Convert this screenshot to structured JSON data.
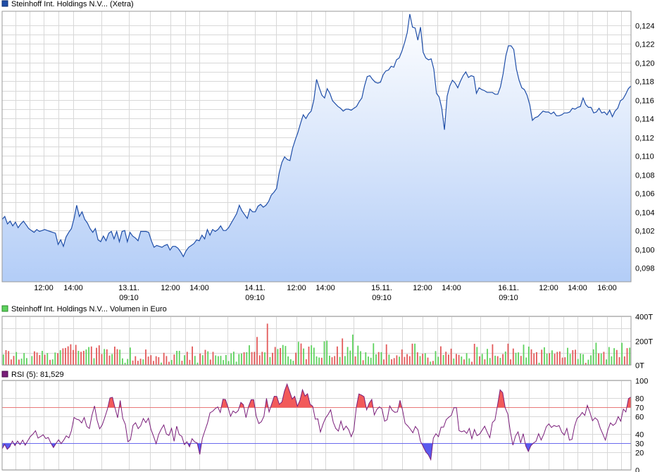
{
  "colors": {
    "price_line": "#1f4ea8",
    "price_fill_top": "#ffffff",
    "price_fill_bottom": "#b3cdf7",
    "vol_up": "#5ed25e",
    "vol_down": "#e35a5a",
    "rsi_line": "#7a1e7a",
    "rsi_overbought": "#f25a5a",
    "rsi_oversold": "#5a5aee",
    "line_70": "#e87878",
    "line_30": "#6a6aee"
  },
  "chart_data": [
    {
      "type": "area",
      "legend": "Steinhoff Int. Holdings N.V... (Xetra)",
      "legend_icon": "blue-square-icon",
      "ylim": [
        0.0965,
        0.1255
      ],
      "y_ticks": [
        "0,124",
        "0,122",
        "0,120",
        "0,118",
        "0,116",
        "0,114",
        "0,112",
        "0,110",
        "0,108",
        "0,106",
        "0,104",
        "0,102",
        "0,100",
        "0,098"
      ],
      "x_ticks": [
        {
          "label": "12:00",
          "sub": ""
        },
        {
          "label": "14:00",
          "sub": ""
        },
        {
          "label": "13.11.",
          "sub": "09:10"
        },
        {
          "label": "12:00",
          "sub": ""
        },
        {
          "label": "14:00",
          "sub": ""
        },
        {
          "label": "14.11.",
          "sub": "09:10"
        },
        {
          "label": "12:00",
          "sub": ""
        },
        {
          "label": "14:00",
          "sub": ""
        },
        {
          "label": "15.11.",
          "sub": "09:10"
        },
        {
          "label": "12:00",
          "sub": ""
        },
        {
          "label": "14:00",
          "sub": ""
        },
        {
          "label": "16.11.",
          "sub": "09:10"
        },
        {
          "label": "12:00",
          "sub": ""
        },
        {
          "label": "14:00",
          "sub": ""
        },
        {
          "label": "16:00",
          "sub": ""
        }
      ],
      "series": [
        {
          "values": [
            0.1032,
            0.1035,
            0.1027,
            0.103,
            0.1025,
            0.1029,
            0.1023,
            0.1027,
            0.103,
            0.1026,
            0.1022,
            0.102,
            0.1018,
            0.1021,
            0.1019,
            0.102,
            0.1021,
            0.102,
            0.1019,
            0.1018,
            0.1017,
            0.1005,
            0.101,
            0.1003,
            0.1013,
            0.1018,
            0.1022,
            0.1033,
            0.1047,
            0.1035,
            0.104,
            0.1032,
            0.1028,
            0.1022,
            0.1018,
            0.1022,
            0.101,
            0.1008,
            0.1014,
            0.1009,
            0.1017,
            0.1019,
            0.1011,
            0.1019,
            0.1008,
            0.1019,
            0.102,
            0.1008,
            0.1018,
            0.1014,
            0.1012,
            0.1009,
            0.1019,
            0.1019,
            0.1019,
            0.1018,
            0.1009,
            0.1002,
            0.1004,
            0.1003,
            0.1002,
            0.1004,
            0.1005,
            0.0999,
            0.1003,
            0.1003,
            0.1001,
            0.0997,
            0.0992,
            0.0998,
            0.1002,
            0.1004,
            0.1006,
            0.101,
            0.1009,
            0.1015,
            0.1011,
            0.1021,
            0.1015,
            0.1021,
            0.1019,
            0.1021,
            0.1025,
            0.102,
            0.102,
            0.1023,
            0.1028,
            0.1033,
            0.1038,
            0.1047,
            0.1041,
            0.1037,
            0.1033,
            0.1043,
            0.104,
            0.104,
            0.1046,
            0.1048,
            0.1045,
            0.1047,
            0.1051,
            0.1058,
            0.1061,
            0.1065,
            0.1082,
            0.1093,
            0.1099,
            0.1096,
            0.1095,
            0.1108,
            0.1117,
            0.1125,
            0.1135,
            0.1144,
            0.114,
            0.1145,
            0.1148,
            0.116,
            0.1182,
            0.1173,
            0.1165,
            0.1162,
            0.1172,
            0.1167,
            0.1159,
            0.1156,
            0.1153,
            0.1151,
            0.1148,
            0.115,
            0.115,
            0.1149,
            0.1151,
            0.1153,
            0.1158,
            0.1162,
            0.1175,
            0.1185,
            0.1186,
            0.1182,
            0.1179,
            0.1178,
            0.1179,
            0.1187,
            0.1191,
            0.1192,
            0.1196,
            0.1195,
            0.1203,
            0.1205,
            0.1212,
            0.1221,
            0.1232,
            0.1252,
            0.1238,
            0.1237,
            0.1224,
            0.1238,
            0.1211,
            0.1205,
            0.1203,
            0.1204,
            0.1193,
            0.1167,
            0.1163,
            0.1151,
            0.1128,
            0.1164,
            0.1175,
            0.1181,
            0.1178,
            0.1173,
            0.118,
            0.1186,
            0.119,
            0.1184,
            0.1186,
            0.1185,
            0.1167,
            0.1173,
            0.1171,
            0.117,
            0.1168,
            0.1168,
            0.1168,
            0.1166,
            0.1166,
            0.1174,
            0.1188,
            0.1207,
            0.1218,
            0.1218,
            0.1214,
            0.1193,
            0.1181,
            0.1173,
            0.1171,
            0.1165,
            0.1155,
            0.1138,
            0.1141,
            0.1142,
            0.1145,
            0.1148,
            0.1147,
            0.1147,
            0.1145,
            0.1147,
            0.1143,
            0.1143,
            0.1144,
            0.1146,
            0.1146,
            0.1147,
            0.1151,
            0.115,
            0.1152,
            0.1153,
            0.1162,
            0.1155,
            0.1152,
            0.1152,
            0.1146,
            0.1147,
            0.1151,
            0.1146,
            0.1147,
            0.1144,
            0.1149,
            0.1142,
            0.1148,
            0.1151,
            0.1159,
            0.1161,
            0.1166,
            0.1172,
            0.1175
          ]
        }
      ]
    },
    {
      "type": "bar",
      "legend": "Steinhoff Int. Holdings N.V... Volumen in Euro",
      "legend_icon": "green-square-icon",
      "unit": "T",
      "ylim": [
        0,
        400
      ],
      "y_ticks": [
        "400T",
        "200T",
        "0T"
      ],
      "values": [
        86,
        122,
        114,
        45,
        74,
        106,
        44,
        52,
        98,
        56,
        4,
        73,
        112,
        102,
        81,
        116,
        84,
        98,
        42,
        46,
        102,
        97,
        121,
        136,
        140,
        153,
        170,
        123,
        184,
        116,
        108,
        116,
        127,
        147,
        152,
        55,
        141,
        161,
        90,
        131,
        128,
        77,
        90,
        151,
        130,
        126,
        54,
        18,
        49,
        143,
        36,
        72,
        34,
        51,
        46,
        127,
        69,
        80,
        33,
        72,
        64,
        19,
        100,
        73,
        26,
        41,
        86,
        116,
        116,
        34,
        80,
        108,
        42,
        152,
        74,
        19,
        94,
        80,
        124,
        112,
        44,
        108,
        78,
        72,
        75,
        40,
        82,
        32,
        95,
        109,
        27,
        90,
        94,
        104,
        105,
        162,
        106,
        107,
        80,
        79,
        108,
        103,
        118,
        65,
        100,
        148,
        131,
        139,
        164,
        156,
        70,
        47,
        34,
        101,
        166,
        176,
        135,
        47,
        151,
        162,
        142,
        70,
        61,
        59,
        194,
        200,
        76,
        63,
        73,
        152,
        66,
        218,
        73,
        148,
        118,
        155,
        70,
        159,
        113,
        39,
        104,
        69,
        59,
        178,
        87,
        106,
        105,
        45,
        169,
        85,
        47,
        56,
        79,
        68,
        127,
        66,
        89,
        72,
        175,
        175,
        104,
        73,
        92,
        96,
        60,
        27,
        33,
        114,
        67,
        153,
        82,
        109,
        85,
        134,
        53,
        91,
        83,
        69,
        45,
        97,
        54,
        26,
        174,
        148,
        71,
        91,
        46,
        132,
        57,
        178,
        76,
        72,
        58,
        89,
        110,
        175,
        46,
        135,
        100,
        103,
        74,
        167,
        61,
        151,
        128,
        95,
        105,
        18,
        125,
        145,
        93,
        97,
        120,
        92,
        107,
        111,
        60,
        63,
        141,
        91,
        122,
        125,
        49,
        93,
        88,
        17,
        43,
        79,
        128,
        183,
        95,
        94,
        108,
        45,
        147,
        71,
        138,
        123,
        64,
        182,
        70,
        138,
        142
      ],
      "up": [
        true,
        false,
        false,
        false,
        false,
        true,
        false,
        true,
        true,
        true,
        false,
        true,
        false,
        false,
        false,
        true,
        false,
        true,
        false,
        true,
        true,
        false,
        true,
        false,
        false,
        false,
        false,
        false,
        false,
        true,
        false,
        false,
        true,
        true,
        false,
        true,
        false,
        false,
        false,
        true,
        false,
        false,
        true,
        false,
        false,
        true,
        true,
        true,
        true,
        true,
        false,
        false,
        false,
        false,
        true,
        false,
        false,
        false,
        false,
        false,
        false,
        true,
        false,
        false,
        false,
        true,
        false,
        true,
        true,
        false,
        true,
        false,
        false,
        false,
        true,
        true,
        false,
        true,
        false,
        true,
        false,
        false,
        true,
        true,
        true,
        true,
        true,
        true,
        true,
        true,
        true,
        true,
        true,
        false,
        true,
        true,
        false,
        false,
        true,
        false,
        false,
        true,
        false,
        true,
        false,
        false,
        true,
        false,
        true,
        true,
        true,
        true,
        true,
        false,
        true,
        false,
        true,
        false,
        false,
        true,
        true,
        true,
        true,
        false,
        true,
        true,
        true,
        false,
        false,
        false,
        true,
        false,
        true,
        true,
        true,
        true,
        false,
        true,
        true,
        false,
        true,
        true,
        true,
        true,
        true,
        false,
        true,
        false,
        false,
        true,
        false,
        false,
        false,
        true,
        false,
        false,
        false,
        false,
        false,
        true,
        false,
        true,
        false,
        true,
        false,
        true,
        false,
        true,
        true,
        false,
        true,
        false,
        false,
        false,
        true,
        false,
        false,
        true,
        false,
        true,
        true,
        false,
        false,
        true,
        false,
        true,
        false,
        true,
        true,
        false,
        true,
        false,
        true,
        false,
        true,
        false,
        false,
        false,
        true,
        true,
        false,
        true,
        true,
        true,
        false,
        false,
        false,
        true,
        false,
        true,
        true,
        false,
        true,
        false,
        false,
        false,
        false,
        false,
        true,
        true,
        false,
        false,
        true,
        true,
        true,
        false,
        true,
        true,
        true,
        true,
        false,
        true,
        false,
        true,
        true,
        true,
        true,
        false,
        false,
        true,
        false,
        false,
        true,
        true,
        true,
        false,
        true
      ],
      "spikes": [
        {
          "index": 102,
          "value": 340,
          "up": false
        },
        {
          "index": 135,
          "value": 250,
          "up": true
        },
        {
          "index": 98,
          "value": 230,
          "up": false
        },
        {
          "index": 114,
          "value": 190,
          "up": true
        },
        {
          "index": 28,
          "value": 165,
          "up": false
        },
        {
          "index": 189,
          "value": 170,
          "up": false
        }
      ]
    },
    {
      "type": "line",
      "legend": "RSI (5): 81,529",
      "legend_icon": "purple-square-icon",
      "ylim": [
        0,
        100
      ],
      "y_ticks": [
        "100",
        "80",
        "70",
        "60",
        "40",
        "30",
        "20",
        "0"
      ],
      "levels": [
        70,
        30
      ],
      "series": [
        {
          "values": [
            23.5,
            28.5,
            23.0,
            25.8,
            32.2,
            27.2,
            32.2,
            28.3,
            33.2,
            27.6,
            32.5,
            37.3,
            39.9,
            43.8,
            35.5,
            37.3,
            39.2,
            35.0,
            36.2,
            29.8,
            25.0,
            29.5,
            33.6,
            29.4,
            33.2,
            38.1,
            35.8,
            43.8,
            58.6,
            56.7,
            55.8,
            52.5,
            58.5,
            48.4,
            46.4,
            61.1,
            71.5,
            55.4,
            45.9,
            50.4,
            58.6,
            67.5,
            80.4,
            81.1,
            69.0,
            58.3,
            77.6,
            57.6,
            50.8,
            31.5,
            33.7,
            49.8,
            52.7,
            46.1,
            49.4,
            57.5,
            52.8,
            57.8,
            45.2,
            37.6,
            29.3,
            39.6,
            45.7,
            50.2,
            40.1,
            38.5,
            46.4,
            32.0,
            48.8,
            39.3,
            37.6,
            28.3,
            31.5,
            25.8,
            34.8,
            31.3,
            30.0,
            17.3,
            35.1,
            43.7,
            52.2,
            63.8,
            65.4,
            68.4,
            70.4,
            64.2,
            78.9,
            78.7,
            69.9,
            59.9,
            65.8,
            63.6,
            66.3,
            75.4,
            72.8,
            58.4,
            70.9,
            78.4,
            78.5,
            60.1,
            51.8,
            53.8,
            60.0,
            79.9,
            64.8,
            73.5,
            82.3,
            82.1,
            73.3,
            76.0,
            87.9,
            95.9,
            87.8,
            79.2,
            82.3,
            71.2,
            77.5,
            89.6,
            82.6,
            85.1,
            73.2,
            71.2,
            56.7,
            57.0,
            42.3,
            51.0,
            58.0,
            62.0,
            67.2,
            53.2,
            46.3,
            43.4,
            54.5,
            44.6,
            48.9,
            45.0,
            37.2,
            44.5,
            70.1,
            84.9,
            83.6,
            81.8,
            67.2,
            74.5,
            78.8,
            61.4,
            67.6,
            70.5,
            68.2,
            54.4,
            56.1,
            71.5,
            66.6,
            64.3,
            64.8,
            77.8,
            66.8,
            52.1,
            49.2,
            45.7,
            41.5,
            48.5,
            44.7,
            31.8,
            26.3,
            20.3,
            17.0,
            11.4,
            35.5,
            40.4,
            37.2,
            47.9,
            47.8,
            56.2,
            58.8,
            61.0,
            69.5,
            69.6,
            43.9,
            42.5,
            43.7,
            40.8,
            46.3,
            34.8,
            45.1,
            38.3,
            40.0,
            44.3,
            48.8,
            41.9,
            36.0,
            53.0,
            55.7,
            72.5,
            89.5,
            86.3,
            69.2,
            62.6,
            42.5,
            27.6,
            37.9,
            42.5,
            30.1,
            40.5,
            26.6,
            20.6,
            26.9,
            30.0,
            32.0,
            40.4,
            33.4,
            39.8,
            48.3,
            51.4,
            47.4,
            49.6,
            48.4,
            49.5,
            42.3,
            39.0,
            46.4,
            33.3,
            34.2,
            48.7,
            57.7,
            60.0,
            64.2,
            60.9,
            72.2,
            64.2,
            54.9,
            58.2,
            55.7,
            46.7,
            40.2,
            33.3,
            44.9,
            52.5,
            49.8,
            51.9,
            59.5,
            54.5,
            67.9,
            64.8,
            79.7,
            81.5
          ]
        }
      ]
    }
  ]
}
